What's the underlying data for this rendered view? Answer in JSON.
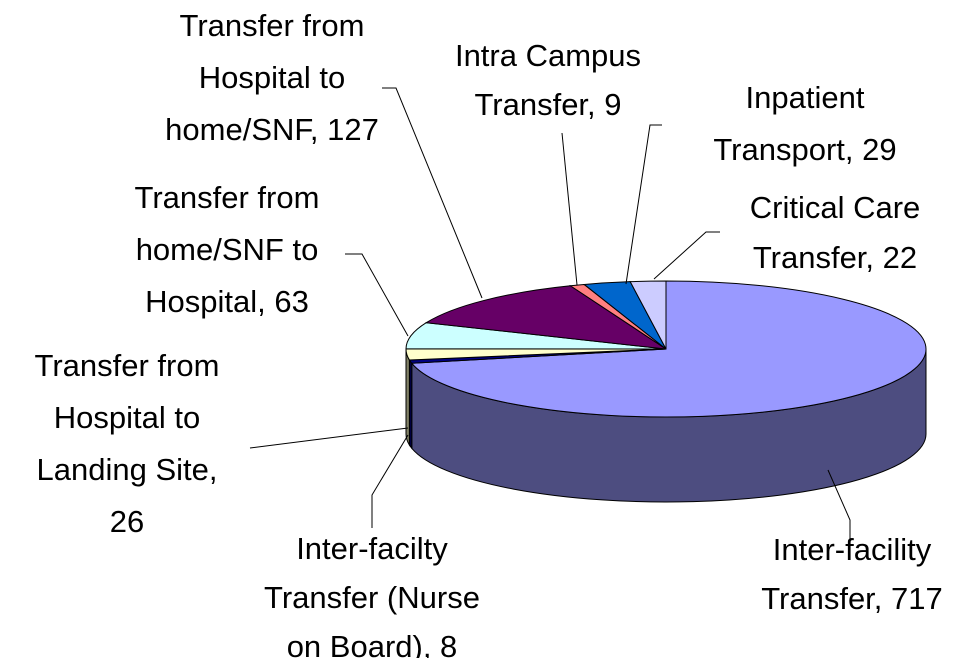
{
  "chart_data": {
    "type": "pie3d",
    "values": [
      717,
      8,
      26,
      63,
      127,
      9,
      29,
      22
    ],
    "value_labels": [
      [
        "Inter-facility",
        "Transfer, 717"
      ],
      [
        "Inter-facilty",
        "Transfer (Nurse",
        "on Board), 8"
      ],
      [
        "Transfer from",
        "Hospital to",
        "Landing Site,",
        "26"
      ],
      [
        "Transfer from",
        "home/SNF to",
        "Hospital, 63"
      ],
      [
        "Transfer from",
        "Hospital to",
        "home/SNF, 127"
      ],
      [
        "Intra Campus",
        "Transfer, 9"
      ],
      [
        "Inpatient",
        "Transport, 29"
      ],
      [
        "Critical Care",
        "Transfer, 22"
      ]
    ],
    "colors": [
      "#9999ff",
      "#000080",
      "#ffffcc",
      "#ccffff",
      "#660066",
      "#ff8080",
      "#0066cc",
      "#ccccff"
    ]
  }
}
